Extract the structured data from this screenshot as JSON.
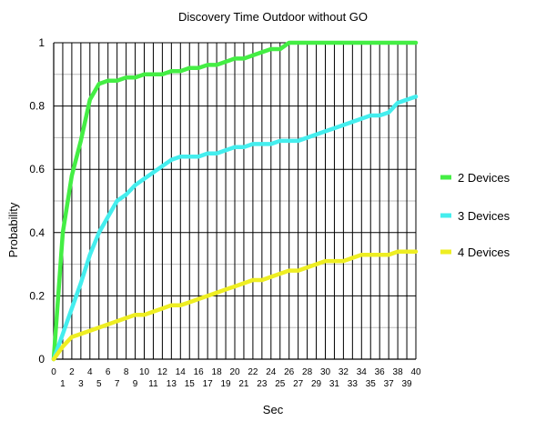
{
  "chart_data": {
    "type": "line",
    "title": "Discovery Time Outdoor without GO",
    "xlabel": "Sec",
    "ylabel": "Probability",
    "xlim": [
      0,
      40
    ],
    "ylim": [
      0,
      1
    ],
    "x_ticks_upper": [
      "0",
      "2",
      "4",
      "6",
      "8",
      "10",
      "12",
      "14",
      "16",
      "18",
      "20",
      "22",
      "24",
      "26",
      "28",
      "30",
      "32",
      "34",
      "36",
      "38",
      "40"
    ],
    "x_ticks_lower": [
      "1",
      "3",
      "5",
      "7",
      "9",
      "11",
      "13",
      "15",
      "17",
      "19",
      "21",
      "23",
      "25",
      "27",
      "29",
      "31",
      "33",
      "35",
      "37",
      "39"
    ],
    "y_ticks": [
      "0",
      "0.2",
      "0.4",
      "0.6",
      "0.8",
      "1"
    ],
    "grid": true,
    "legend_position": "right",
    "x": [
      0,
      1,
      2,
      3,
      4,
      5,
      6,
      7,
      8,
      9,
      10,
      11,
      12,
      13,
      14,
      15,
      16,
      17,
      18,
      19,
      20,
      21,
      22,
      23,
      24,
      25,
      26,
      27,
      28,
      29,
      30,
      31,
      32,
      33,
      34,
      35,
      36,
      37,
      38,
      39,
      40
    ],
    "series": [
      {
        "name": "2 Devices",
        "color": "#44ee44",
        "values": [
          0,
          0.4,
          0.58,
          0.69,
          0.82,
          0.87,
          0.88,
          0.88,
          0.89,
          0.89,
          0.9,
          0.9,
          0.9,
          0.91,
          0.91,
          0.92,
          0.92,
          0.93,
          0.93,
          0.94,
          0.95,
          0.95,
          0.96,
          0.97,
          0.98,
          0.98,
          1.0,
          1.0,
          1.0,
          1.0,
          1.0,
          1.0,
          1.0,
          1.0,
          1.0,
          1.0,
          1.0,
          1.0,
          1.0,
          1.0,
          1.0
        ]
      },
      {
        "name": "3 Devices",
        "color": "#44eeee",
        "values": [
          0,
          0.08,
          0.16,
          0.24,
          0.33,
          0.4,
          0.45,
          0.5,
          0.52,
          0.55,
          0.57,
          0.59,
          0.61,
          0.63,
          0.64,
          0.64,
          0.64,
          0.65,
          0.65,
          0.66,
          0.67,
          0.67,
          0.68,
          0.68,
          0.68,
          0.69,
          0.69,
          0.69,
          0.7,
          0.71,
          0.72,
          0.73,
          0.74,
          0.75,
          0.76,
          0.77,
          0.77,
          0.78,
          0.81,
          0.82,
          0.83
        ]
      },
      {
        "name": "4 Devices",
        "color": "#eeee22",
        "values": [
          0,
          0.04,
          0.07,
          0.08,
          0.09,
          0.1,
          0.11,
          0.12,
          0.13,
          0.14,
          0.14,
          0.15,
          0.16,
          0.17,
          0.17,
          0.18,
          0.19,
          0.2,
          0.21,
          0.22,
          0.23,
          0.24,
          0.25,
          0.25,
          0.26,
          0.27,
          0.28,
          0.28,
          0.29,
          0.3,
          0.31,
          0.31,
          0.31,
          0.32,
          0.33,
          0.33,
          0.33,
          0.33,
          0.34,
          0.34,
          0.34
        ]
      }
    ]
  }
}
